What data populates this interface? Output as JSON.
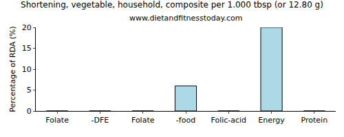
{
  "chart_data": {
    "type": "bar",
    "title": "Shortening, vegetable, household, composite per 1.000 tbsp (or 12.80 g)",
    "subtitle": "www.dietandfitnesstoday.com",
    "y_label": "Percentage of RDA (%)",
    "categories": [
      "Folate",
      "-DFE",
      "Folate",
      "-food",
      "Folic-acid",
      "Energy",
      "Protein"
    ],
    "values": [
      0,
      0,
      0,
      6,
      0,
      20,
      0
    ],
    "color": "#add8e6",
    "ylim": [
      0,
      20
    ],
    "yticks": [
      0,
      5,
      10,
      15,
      20
    ],
    "grid": false
  }
}
